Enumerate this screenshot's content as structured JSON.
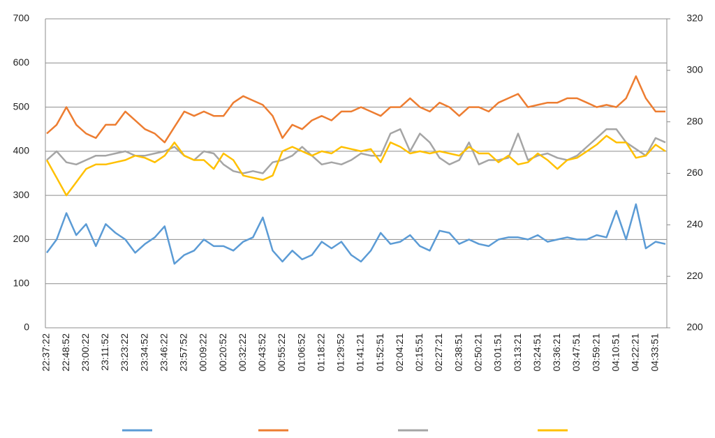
{
  "chart_data": {
    "type": "line",
    "categories": [
      "22:37:22",
      null,
      "22:48:52",
      null,
      "23:00:22",
      null,
      "23:11:52",
      null,
      "23:23:22",
      null,
      "23:34:52",
      null,
      "23:46:22",
      null,
      "23:57:52",
      null,
      "00:09:22",
      null,
      "00:20:52",
      null,
      "00:32:22",
      null,
      "00:43:52",
      null,
      "00:55:22",
      null,
      "01:06:52",
      null,
      "01:18:22",
      null,
      "01:29:52",
      null,
      "01:41:21",
      null,
      "01:52:51",
      null,
      "02:04:21",
      null,
      "02:15:51",
      null,
      "02:27:21",
      null,
      "02:38:51",
      null,
      "02:50:21",
      null,
      "03:01:51",
      null,
      "03:13:21",
      null,
      "03:24:51",
      null,
      "03:36:21",
      null,
      "03:47:51",
      null,
      "03:59:21",
      null,
      "04:10:51",
      null,
      "04:22:21",
      null,
      "04:33:51",
      null
    ],
    "series": [
      {
        "color": "#5b9bd5",
        "values": [
          170,
          200,
          260,
          210,
          235,
          185,
          235,
          215,
          200,
          170,
          190,
          205,
          230,
          145,
          165,
          175,
          200,
          185,
          185,
          175,
          195,
          205,
          250,
          175,
          150,
          175,
          155,
          165,
          195,
          180,
          195,
          165,
          150,
          175,
          215,
          190,
          195,
          210,
          185,
          175,
          220,
          215,
          190,
          200,
          190,
          185,
          200,
          205,
          205,
          200,
          210,
          195,
          200,
          205,
          200,
          200,
          210,
          205,
          265,
          200,
          280,
          180,
          195,
          190
        ]
      },
      {
        "color": "#ed7d31",
        "values": [
          440,
          460,
          500,
          460,
          440,
          430,
          460,
          460,
          490,
          470,
          450,
          440,
          420,
          455,
          490,
          480,
          490,
          480,
          480,
          510,
          525,
          515,
          505,
          480,
          430,
          460,
          450,
          470,
          480,
          470,
          490,
          490,
          500,
          490,
          480,
          500,
          500,
          520,
          500,
          490,
          510,
          500,
          480,
          500,
          500,
          490,
          510,
          520,
          530,
          500,
          505,
          510,
          510,
          520,
          520,
          510,
          500,
          505,
          500,
          520,
          570,
          520,
          490,
          490
        ]
      },
      {
        "color": "#a5a5a5",
        "values": [
          380,
          400,
          375,
          370,
          380,
          390,
          390,
          395,
          400,
          390,
          390,
          395,
          400,
          410,
          390,
          380,
          400,
          395,
          370,
          355,
          350,
          355,
          350,
          375,
          380,
          390,
          410,
          390,
          370,
          375,
          370,
          380,
          395,
          390,
          390,
          440,
          450,
          400,
          440,
          420,
          385,
          370,
          380,
          420,
          370,
          380,
          380,
          385,
          440,
          380,
          390,
          395,
          385,
          380,
          390,
          410,
          430,
          450,
          450,
          420,
          405,
          390,
          430,
          420
        ]
      },
      {
        "color": "#ffc000",
        "values": [
          380,
          340,
          300,
          330,
          360,
          370,
          370,
          375,
          380,
          390,
          385,
          375,
          390,
          420,
          390,
          380,
          380,
          360,
          395,
          380,
          345,
          340,
          335,
          345,
          400,
          410,
          400,
          390,
          400,
          395,
          410,
          405,
          400,
          405,
          375,
          420,
          410,
          395,
          400,
          395,
          400,
          395,
          390,
          410,
          395,
          395,
          375,
          390,
          370,
          375,
          395,
          380,
          360,
          380,
          385,
          400,
          415,
          435,
          420,
          420,
          385,
          390,
          415,
          400
        ]
      }
    ],
    "ylim": [
      0,
      700
    ],
    "yticks": [
      0,
      100,
      200,
      300,
      400,
      500,
      600,
      700
    ],
    "y2lim": [
      200,
      320
    ],
    "y2ticks": [
      200,
      220,
      240,
      260,
      280,
      300,
      320
    ],
    "grid": true
  }
}
